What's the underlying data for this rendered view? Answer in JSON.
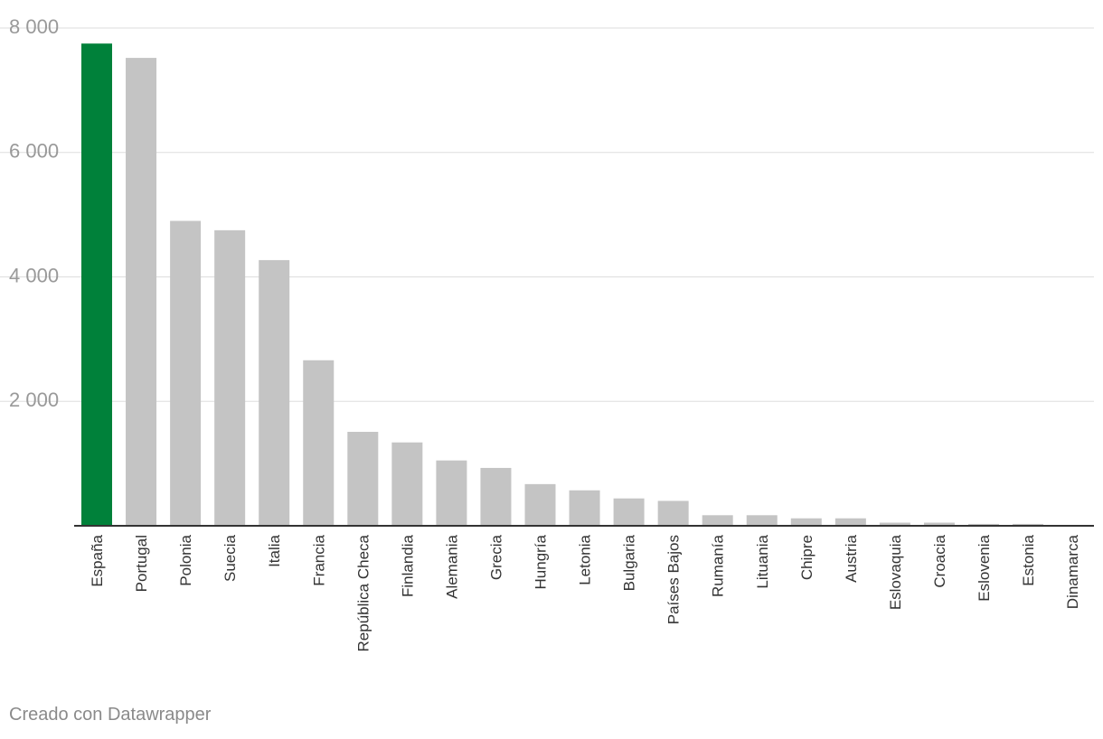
{
  "chart_data": {
    "type": "bar",
    "categories": [
      "España",
      "Portugal",
      "Polonia",
      "Suecia",
      "Italia",
      "Francia",
      "República Checa",
      "Finlandia",
      "Alemania",
      "Grecia",
      "Hungría",
      "Letonia",
      "Bulgaria",
      "Países Bajos",
      "Rumanía",
      "Lituania",
      "Chipre",
      "Austria",
      "Eslovaquia",
      "Croacia",
      "Eslovenia",
      "Estonia",
      "Dinamarca"
    ],
    "values": [
      7750,
      7520,
      4900,
      4750,
      4270,
      2660,
      1510,
      1340,
      1050,
      930,
      670,
      570,
      440,
      400,
      170,
      170,
      120,
      120,
      50,
      50,
      30,
      30,
      0
    ],
    "highlight_index": 0,
    "ylim": [
      0,
      8000
    ],
    "yticks": [
      0,
      2000,
      4000,
      6000,
      8000
    ],
    "ytick_labels": [
      "",
      "2 000",
      "4 000",
      "6 000",
      "8 000"
    ],
    "grid": true,
    "colors": {
      "highlight": "#00813a",
      "bar": "#c4c4c4",
      "grid": "#dddddd",
      "axis": "#333333",
      "tick_text": "#999999",
      "label_text": "#333333"
    }
  },
  "footer": {
    "credit": "Creado con Datawrapper"
  }
}
